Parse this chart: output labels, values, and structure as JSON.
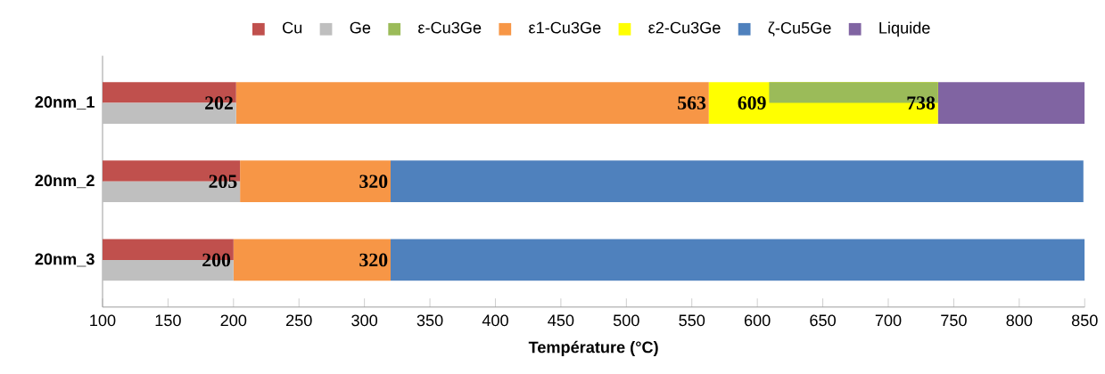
{
  "chart_data": {
    "type": "bar",
    "orientation": "horizontal",
    "xlabel": "Température (°C)",
    "categories": [
      "20nm_1",
      "20nm_2",
      "20nm_3"
    ],
    "series": [
      {
        "name": "Cu",
        "color": "#c0504d",
        "base": [
          100,
          100,
          100
        ],
        "values": [
          102,
          105,
          100
        ]
      },
      {
        "name": "Ge",
        "color": "#bfbfbf",
        "base": [
          100,
          100,
          100
        ],
        "values": [
          102,
          105,
          100
        ]
      },
      {
        "name": "ε-Cu3Ge",
        "color": "#9bbb59",
        "base": [
          609,
          null,
          null
        ],
        "values": [
          129,
          null,
          null
        ]
      },
      {
        "name": "ε1-Cu3Ge",
        "color": "#f79646",
        "base": [
          202,
          205,
          200
        ],
        "values": [
          361,
          115,
          120
        ]
      },
      {
        "name": "ε2-Cu3Ge",
        "color": "#ffff00",
        "base": [
          563,
          null,
          null
        ],
        "values": [
          175,
          null,
          null
        ]
      },
      {
        "name": "ζ-Cu5Ge",
        "color": "#4f81bd",
        "base": [
          null,
          320,
          320
        ],
        "values": [
          null,
          529,
          530
        ]
      },
      {
        "name": "Liquide",
        "color": "#8064a2",
        "base": [
          738,
          null,
          null
        ],
        "values": [
          112,
          null,
          null
        ]
      }
    ],
    "annotations": [
      {
        "text": "202",
        "x": 202,
        "y": "20nm_1"
      },
      {
        "text": "563",
        "x": 563,
        "y": "20nm_1"
      },
      {
        "text": "609",
        "x": 609,
        "y": "20nm_1"
      },
      {
        "text": "738",
        "x": 738,
        "y": "20nm_1"
      },
      {
        "text": "205",
        "x": 205,
        "y": "20nm_2"
      },
      {
        "text": "320",
        "x": 320,
        "y": "20nm_2"
      },
      {
        "text": "200",
        "x": 200,
        "y": "20nm_3"
      },
      {
        "text": "320",
        "x": 320,
        "y": "20nm_3"
      }
    ],
    "xlim": [
      100,
      850
    ],
    "xticks": [
      100,
      150,
      200,
      250,
      300,
      350,
      400,
      450,
      500,
      550,
      600,
      650,
      700,
      750,
      800,
      850
    ],
    "legend": "top",
    "grid": false
  }
}
